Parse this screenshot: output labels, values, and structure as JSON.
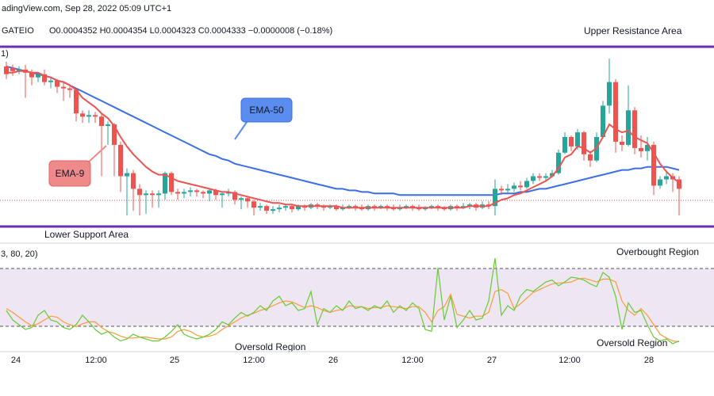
{
  "header": {
    "source": "adingView.com, Sep 28, 2022 05:09 UTC+1",
    "symbol": "GATEIO",
    "ohlc": "O0.0004352 H0.0004354 L0.0004323 C0.0004333 −0.0000008 (−0.18%)"
  },
  "annotations": {
    "upper_resistance": "Upper Resistance Area",
    "lower_support": "Lower Support Area",
    "overbought": "Overbought Region",
    "oversold_left": "Oversold Region",
    "oversold_right": "Oversold Region",
    "ema50_callout": "EMA-50",
    "ema9_callout": "EMA-9",
    "indicator_label": "3, 80, 20)",
    "price_pane_partial_label": "1)"
  },
  "colors": {
    "bull": "#26a69a",
    "bear": "#ef5350",
    "ema9": "#ef5350",
    "ema50": "#3d6ee6",
    "resistance_line": "#6a2fb0",
    "stoch_k": "#66cc33",
    "stoch_d": "#ff9a3c",
    "stoch_band": "#efe6f3",
    "callout_blue": "#5b8def",
    "callout_red": "#f08a8a"
  },
  "chart_data": {
    "type": "candlestick",
    "x_ticks": [
      "24",
      "12:00",
      "25",
      "12:00",
      "26",
      "12:00",
      "27",
      "12:00",
      "28"
    ],
    "candles": [
      [
        0,
        100,
        95,
        103,
        92
      ],
      [
        1,
        99,
        97,
        101,
        94
      ],
      [
        2,
        97,
        98,
        100,
        95
      ],
      [
        3,
        98,
        96,
        101,
        80
      ],
      [
        4,
        96,
        93,
        98,
        88
      ],
      [
        5,
        93,
        95,
        96,
        90
      ],
      [
        6,
        95,
        90,
        98,
        88
      ],
      [
        7,
        90,
        91,
        93,
        86
      ],
      [
        8,
        91,
        87,
        92,
        83
      ],
      [
        9,
        87,
        86,
        90,
        78
      ],
      [
        10,
        86,
        85,
        88,
        80
      ],
      [
        11,
        85,
        70,
        86,
        65
      ],
      [
        12,
        70,
        68,
        72,
        64
      ],
      [
        13,
        68,
        69,
        72,
        64
      ],
      [
        14,
        69,
        68,
        71,
        64
      ],
      [
        15,
        68,
        62,
        70,
        30
      ],
      [
        16,
        62,
        63,
        65,
        50
      ],
      [
        17,
        63,
        50,
        64,
        30
      ],
      [
        18,
        50,
        30,
        52,
        20
      ],
      [
        19,
        30,
        32,
        35,
        5
      ],
      [
        20,
        32,
        22,
        34,
        8
      ],
      [
        21,
        22,
        18,
        25,
        5
      ],
      [
        22,
        18,
        19,
        21,
        6
      ],
      [
        23,
        19,
        18,
        21,
        10
      ],
      [
        24,
        18,
        19,
        21,
        10
      ],
      [
        25,
        19,
        32,
        33,
        15
      ],
      [
        26,
        32,
        20,
        33,
        18
      ],
      [
        27,
        20,
        19,
        22,
        15
      ],
      [
        28,
        19,
        20,
        22,
        16
      ],
      [
        29,
        20,
        21,
        23,
        17
      ],
      [
        30,
        21,
        20,
        22,
        17
      ],
      [
        31,
        20,
        19,
        21,
        16
      ],
      [
        32,
        19,
        21,
        22,
        14
      ],
      [
        33,
        21,
        18,
        22,
        15
      ],
      [
        34,
        18,
        19,
        20,
        10
      ],
      [
        35,
        19,
        20,
        22,
        17
      ],
      [
        36,
        20,
        15,
        21,
        12
      ],
      [
        37,
        15,
        16,
        17,
        9
      ],
      [
        38,
        16,
        14,
        17,
        10
      ],
      [
        39,
        14,
        10,
        15,
        5
      ],
      [
        40,
        10,
        11,
        13,
        8
      ],
      [
        41,
        11,
        8,
        12,
        6
      ],
      [
        42,
        8,
        9,
        11,
        6
      ],
      [
        43,
        9,
        10,
        12,
        7
      ],
      [
        44,
        10,
        11,
        12,
        8
      ],
      [
        45,
        11,
        9,
        12,
        7
      ],
      [
        46,
        9,
        11,
        12,
        8
      ],
      [
        47,
        11,
        10,
        12,
        8
      ],
      [
        48,
        10,
        12,
        13,
        9
      ],
      [
        49,
        12,
        11,
        13,
        9
      ],
      [
        50,
        11,
        10,
        12,
        8
      ],
      [
        51,
        10,
        11,
        12,
        9
      ],
      [
        52,
        11,
        9,
        12,
        8
      ],
      [
        53,
        9,
        10,
        12,
        8
      ],
      [
        54,
        10,
        11,
        12,
        9
      ],
      [
        55,
        11,
        10,
        12,
        8
      ],
      [
        56,
        10,
        9,
        12,
        8
      ],
      [
        57,
        9,
        11,
        12,
        8
      ],
      [
        58,
        11,
        10,
        12,
        8
      ],
      [
        59,
        10,
        11,
        12,
        9
      ],
      [
        60,
        11,
        10,
        12,
        8
      ],
      [
        61,
        10,
        9,
        12,
        8
      ],
      [
        62,
        9,
        10,
        12,
        8
      ],
      [
        63,
        10,
        11,
        12,
        9
      ],
      [
        64,
        11,
        10,
        12,
        8
      ],
      [
        65,
        10,
        9,
        12,
        8
      ],
      [
        66,
        9,
        10,
        11,
        8
      ],
      [
        67,
        10,
        11,
        12,
        9
      ],
      [
        68,
        11,
        10,
        12,
        8
      ],
      [
        69,
        10,
        9,
        11,
        8
      ],
      [
        70,
        9,
        11,
        12,
        8
      ],
      [
        71,
        11,
        10,
        12,
        8
      ],
      [
        72,
        10,
        11,
        13,
        9
      ],
      [
        73,
        11,
        12,
        13,
        9
      ],
      [
        74,
        12,
        10,
        13,
        8
      ],
      [
        75,
        10,
        12,
        14,
        9
      ],
      [
        76,
        12,
        11,
        14,
        9
      ],
      [
        77,
        11,
        22,
        28,
        5
      ],
      [
        78,
        22,
        21,
        24,
        18
      ],
      [
        79,
        21,
        22,
        25,
        19
      ],
      [
        80,
        22,
        24,
        26,
        20
      ],
      [
        81,
        24,
        23,
        27,
        21
      ],
      [
        82,
        23,
        27,
        29,
        22
      ],
      [
        83,
        27,
        30,
        32,
        25
      ],
      [
        84,
        30,
        29,
        32,
        27
      ],
      [
        85,
        29,
        30,
        32,
        27
      ],
      [
        86,
        30,
        32,
        34,
        29
      ],
      [
        87,
        32,
        45,
        47,
        31
      ],
      [
        88,
        45,
        55,
        58,
        44
      ],
      [
        89,
        55,
        49,
        56,
        46
      ],
      [
        90,
        49,
        58,
        60,
        47
      ],
      [
        91,
        58,
        44,
        59,
        40
      ],
      [
        92,
        44,
        40,
        46,
        36
      ],
      [
        93,
        40,
        55,
        58,
        39
      ],
      [
        94,
        55,
        75,
        78,
        54
      ],
      [
        95,
        75,
        90,
        105,
        70
      ],
      [
        96,
        90,
        52,
        92,
        45
      ],
      [
        97,
        52,
        50,
        56,
        46
      ],
      [
        98,
        50,
        72,
        88,
        49
      ],
      [
        99,
        72,
        48,
        74,
        44
      ],
      [
        100,
        48,
        46,
        56,
        42
      ],
      [
        101,
        46,
        50,
        55,
        40
      ],
      [
        102,
        50,
        24,
        52,
        18
      ],
      [
        103,
        24,
        28,
        30,
        22
      ],
      [
        104,
        28,
        30,
        33,
        25
      ],
      [
        105,
        30,
        28,
        32,
        20
      ],
      [
        106,
        28,
        22,
        30,
        5
      ]
    ],
    "ema9": [
      96,
      96,
      97,
      97,
      96,
      96,
      94,
      93,
      91,
      90,
      88,
      85,
      80,
      77,
      74,
      70,
      67,
      62,
      55,
      49,
      44,
      40,
      36,
      33,
      31,
      31,
      29,
      27,
      26,
      25,
      24,
      23,
      22,
      21,
      20,
      20,
      19,
      18,
      17,
      16,
      15,
      14,
      13,
      13,
      12,
      12,
      11,
      11,
      11,
      11,
      11,
      11,
      11,
      10,
      10,
      10,
      10,
      10,
      10,
      10,
      10,
      10,
      10,
      10,
      10,
      10,
      10,
      10,
      10,
      10,
      10,
      10,
      10,
      11,
      11,
      11,
      11,
      13,
      15,
      16,
      18,
      19,
      21,
      23,
      25,
      27,
      30,
      35,
      42,
      44,
      49,
      48,
      45,
      48,
      55,
      63,
      60,
      58,
      59,
      55,
      53,
      51,
      45,
      38,
      33,
      29,
      26
    ],
    "ema50": [
      100,
      99,
      98,
      97,
      96,
      95,
      94,
      93,
      91,
      90,
      88,
      86,
      84,
      82,
      80,
      78,
      76,
      74,
      72,
      70,
      68,
      66,
      64,
      62,
      60,
      58,
      56,
      54,
      52,
      50,
      48,
      46,
      44,
      43,
      41,
      40,
      38,
      37,
      36,
      35,
      34,
      33,
      32,
      31,
      30,
      29,
      28,
      27,
      26,
      25,
      24,
      23,
      22,
      22,
      21,
      21,
      20,
      20,
      19,
      19,
      19,
      19,
      18,
      18,
      18,
      18,
      18,
      18,
      18,
      18,
      18,
      18,
      18,
      18,
      18,
      18,
      18,
      18,
      19,
      19,
      19,
      20,
      20,
      21,
      22,
      22,
      23,
      24,
      25,
      26,
      27,
      28,
      29,
      30,
      31,
      32,
      33,
      34,
      34,
      35,
      35,
      36,
      36,
      36,
      36,
      35,
      34
    ],
    "stoch_k": [
      40,
      30,
      25,
      20,
      22,
      35,
      40,
      30,
      28,
      22,
      20,
      25,
      35,
      28,
      20,
      15,
      18,
      12,
      8,
      10,
      15,
      12,
      10,
      8,
      8,
      12,
      18,
      25,
      15,
      12,
      10,
      12,
      15,
      20,
      28,
      25,
      32,
      38,
      34,
      38,
      45,
      40,
      50,
      55,
      45,
      48,
      40,
      42,
      60,
      25,
      42,
      38,
      45,
      40,
      50,
      42,
      44,
      40,
      45,
      42,
      50,
      38,
      45,
      40,
      48,
      42,
      20,
      18,
      85,
      30,
      55,
      22,
      30,
      40,
      30,
      32,
      50,
      95,
      35,
      45,
      40,
      55,
      62,
      60,
      65,
      70,
      72,
      66,
      70,
      75,
      74,
      72,
      68,
      65,
      80,
      75,
      55,
      20,
      48,
      38,
      40,
      25,
      12,
      8,
      10,
      5,
      8
    ],
    "stoch_d": [
      42,
      38,
      33,
      28,
      24,
      26,
      30,
      34,
      33,
      28,
      25,
      23,
      26,
      28,
      28,
      22,
      18,
      16,
      13,
      11,
      11,
      12,
      12,
      11,
      10,
      10,
      12,
      18,
      20,
      18,
      14,
      12,
      13,
      15,
      20,
      24,
      28,
      32,
      35,
      37,
      40,
      42,
      45,
      48,
      50,
      49,
      46,
      43,
      45,
      43,
      40,
      38,
      40,
      41,
      45,
      44,
      44,
      42,
      43,
      43,
      45,
      44,
      43,
      42,
      44,
      44,
      38,
      28,
      40,
      44,
      57,
      36,
      34,
      32,
      34,
      34,
      38,
      60,
      62,
      58,
      42,
      47,
      53,
      59,
      62,
      65,
      68,
      69,
      69,
      70,
      73,
      74,
      72,
      70,
      73,
      73,
      70,
      50,
      40,
      35,
      42,
      35,
      25,
      15,
      11,
      8,
      7
    ],
    "stoch_bands": [
      80,
      20
    ],
    "price_y_range": [
      0,
      110
    ],
    "stoch_y_range": [
      0,
      100
    ]
  }
}
